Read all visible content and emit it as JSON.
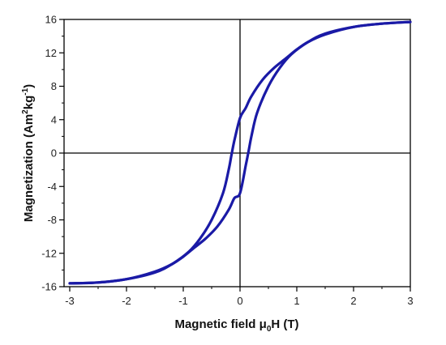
{
  "chart_data": {
    "type": "line",
    "title": "",
    "xlabel": {
      "prefix": "Magnetic field μ",
      "sub": "0",
      "suffix": "H (T)"
    },
    "ylabel": {
      "p1": "Magnetization (Am",
      "sup1": "2",
      "p2": "kg",
      "sup2": "-1",
      "p3": ")"
    },
    "xlim": [
      -3.1,
      3.0
    ],
    "ylim": [
      -16,
      16
    ],
    "xticks": [
      -3,
      -2,
      -1,
      0,
      1,
      2,
      3
    ],
    "yticks": [
      -16,
      -12,
      -8,
      -4,
      0,
      4,
      8,
      12,
      16
    ],
    "xtick_labels": [
      "-3",
      "-2",
      "-1",
      "0",
      "1",
      "2",
      "3"
    ],
    "ytick_labels": [
      "-16",
      "-12",
      "-8",
      "-4",
      "0",
      "4",
      "8",
      "12",
      "16"
    ],
    "zero_lines": true,
    "grid": false,
    "legend": "none",
    "series": [
      {
        "color": "#1a1aa6",
        "x": [
          3.0,
          2.5,
          2.0,
          1.5,
          1.2,
          1.0,
          0.8,
          0.6,
          0.4,
          0.2,
          0.1,
          0.0,
          -0.1,
          -0.15,
          -0.2,
          -0.3,
          -0.5,
          -0.7,
          -0.9,
          -1.2,
          -1.5,
          -2.0,
          -2.5,
          -3.0
        ],
        "y": [
          15.7,
          15.5,
          15.1,
          14.2,
          13.3,
          12.4,
          11.3,
          10.2,
          8.8,
          6.8,
          5.4,
          4.2,
          1.5,
          -0.2,
          -2.0,
          -4.8,
          -8.0,
          -10.2,
          -11.8,
          -13.3,
          -14.3,
          -15.1,
          -15.5,
          -15.6
        ]
      },
      {
        "color": "#1a1aa6",
        "x": [
          -3.0,
          -2.5,
          -2.0,
          -1.5,
          -1.2,
          -1.0,
          -0.8,
          -0.6,
          -0.4,
          -0.2,
          -0.1,
          0.0,
          0.1,
          0.15,
          0.2,
          0.3,
          0.5,
          0.7,
          0.9,
          1.2,
          1.5,
          2.0,
          2.5,
          3.0
        ],
        "y": [
          -15.6,
          -15.5,
          -15.1,
          -14.2,
          -13.3,
          -12.4,
          -11.3,
          -10.2,
          -8.8,
          -6.8,
          -5.4,
          -4.8,
          -1.5,
          0.2,
          2.0,
          4.8,
          8.0,
          10.2,
          11.8,
          13.3,
          14.3,
          15.1,
          15.5,
          15.7
        ]
      }
    ]
  }
}
